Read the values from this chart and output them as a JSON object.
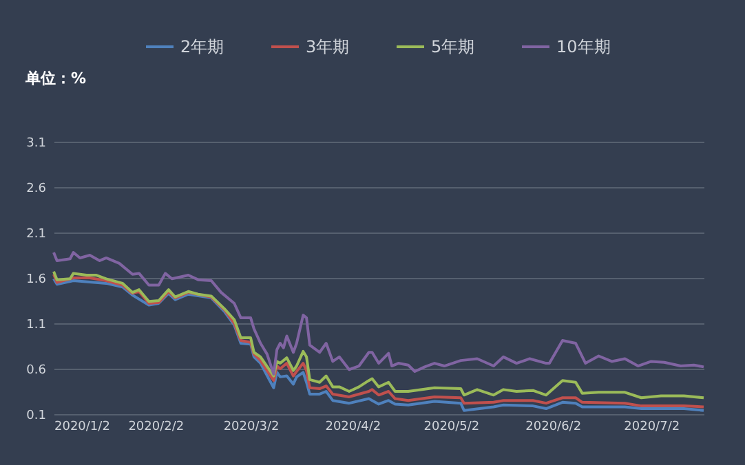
{
  "chart_data": {
    "type": "line",
    "ylabel": "单位：%",
    "legend": "top",
    "grid": "y",
    "line_style": "solid",
    "marker": "none",
    "xlim": [
      "2020-01-02",
      "2020-07-18"
    ],
    "xticks": [
      {
        "value": "2020-01-02",
        "label": "2020/1/2"
      },
      {
        "value": "2020-02-02",
        "label": "2020/2/2"
      },
      {
        "value": "2020-03-02",
        "label": "2020/3/2"
      },
      {
        "value": "2020-04-02",
        "label": "2020/4/2"
      },
      {
        "value": "2020-05-02",
        "label": "2020/5/2"
      },
      {
        "value": "2020-06-02",
        "label": "2020/6/2"
      },
      {
        "value": "2020-07-02",
        "label": "2020/7/2"
      }
    ],
    "ylim": [
      0.1,
      3.1
    ],
    "yticks": [
      0.1,
      0.6,
      1.1,
      1.6,
      2.1,
      2.6,
      3.1
    ],
    "series": [
      {
        "name": "2年期",
        "color": "#4f81bd",
        "x": [
          "2020-01-02",
          "2020-01-03",
          "2020-01-08",
          "2020-01-18",
          "2020-01-23",
          "2020-01-26",
          "2020-01-31",
          "2020-02-03",
          "2020-02-06",
          "2020-02-08",
          "2020-02-12",
          "2020-02-19",
          "2020-02-23",
          "2020-02-26",
          "2020-02-28",
          "2020-03-02",
          "2020-03-03",
          "2020-03-05",
          "2020-03-09",
          "2020-03-10",
          "2020-03-11",
          "2020-03-13",
          "2020-03-15",
          "2020-03-16",
          "2020-03-18",
          "2020-03-19",
          "2020-03-20",
          "2020-03-23",
          "2020-03-25",
          "2020-03-27",
          "2020-04-01",
          "2020-04-07",
          "2020-04-08",
          "2020-04-10",
          "2020-04-13",
          "2020-04-15",
          "2020-04-19",
          "2020-04-27",
          "2020-05-05",
          "2020-05-06",
          "2020-05-15",
          "2020-05-18",
          "2020-05-27",
          "2020-05-31",
          "2020-06-05",
          "2020-06-09",
          "2020-06-11",
          "2020-06-24",
          "2020-06-29",
          "2020-07-12",
          "2020-07-18"
        ],
        "values": [
          1.59,
          1.53,
          1.57,
          1.54,
          1.5,
          1.41,
          1.3,
          1.32,
          1.43,
          1.36,
          1.42,
          1.38,
          1.23,
          1.08,
          0.88,
          0.87,
          0.73,
          0.66,
          0.39,
          0.56,
          0.51,
          0.52,
          0.43,
          0.51,
          0.56,
          0.45,
          0.32,
          0.32,
          0.35,
          0.25,
          0.22,
          0.27,
          0.25,
          0.21,
          0.25,
          0.21,
          0.2,
          0.24,
          0.22,
          0.14,
          0.18,
          0.2,
          0.19,
          0.16,
          0.23,
          0.22,
          0.18,
          0.18,
          0.16,
          0.16,
          0.14
        ]
      },
      {
        "name": "3年期",
        "color": "#c0504d",
        "x": [
          "2020-01-02",
          "2020-01-03",
          "2020-01-08",
          "2020-01-13",
          "2020-01-18",
          "2020-01-23",
          "2020-01-26",
          "2020-01-28",
          "2020-01-31",
          "2020-02-03",
          "2020-02-06",
          "2020-02-08",
          "2020-02-12",
          "2020-02-19",
          "2020-02-23",
          "2020-02-26",
          "2020-02-28",
          "2020-03-02",
          "2020-03-03",
          "2020-03-05",
          "2020-03-09",
          "2020-03-10",
          "2020-03-11",
          "2020-03-13",
          "2020-03-15",
          "2020-03-16",
          "2020-03-18",
          "2020-03-19",
          "2020-03-20",
          "2020-03-23",
          "2020-03-25",
          "2020-03-27",
          "2020-04-01",
          "2020-04-07",
          "2020-04-08",
          "2020-04-10",
          "2020-04-13",
          "2020-04-15",
          "2020-04-19",
          "2020-04-27",
          "2020-05-05",
          "2020-05-06",
          "2020-05-15",
          "2020-05-18",
          "2020-05-27",
          "2020-05-31",
          "2020-06-05",
          "2020-06-09",
          "2020-06-11",
          "2020-06-24",
          "2020-06-29",
          "2020-07-12",
          "2020-07-18"
        ],
        "values": [
          1.64,
          1.55,
          1.6,
          1.6,
          1.57,
          1.52,
          1.43,
          1.45,
          1.32,
          1.33,
          1.45,
          1.38,
          1.44,
          1.39,
          1.25,
          1.1,
          0.91,
          0.89,
          0.76,
          0.69,
          0.47,
          0.63,
          0.6,
          0.66,
          0.52,
          0.57,
          0.66,
          0.58,
          0.39,
          0.38,
          0.41,
          0.32,
          0.29,
          0.35,
          0.37,
          0.31,
          0.35,
          0.27,
          0.25,
          0.29,
          0.28,
          0.22,
          0.23,
          0.25,
          0.25,
          0.22,
          0.28,
          0.28,
          0.23,
          0.22,
          0.19,
          0.19,
          0.18
        ]
      },
      {
        "name": "5年期",
        "color": "#9bbb59",
        "x": [
          "2020-01-02",
          "2020-01-03",
          "2020-01-07",
          "2020-01-08",
          "2020-01-12",
          "2020-01-15",
          "2020-01-18",
          "2020-01-23",
          "2020-01-26",
          "2020-01-28",
          "2020-01-31",
          "2020-02-03",
          "2020-02-06",
          "2020-02-08",
          "2020-02-12",
          "2020-02-15",
          "2020-02-19",
          "2020-02-23",
          "2020-02-26",
          "2020-02-28",
          "2020-03-02",
          "2020-03-03",
          "2020-03-05",
          "2020-03-09",
          "2020-03-10",
          "2020-03-11",
          "2020-03-13",
          "2020-03-15",
          "2020-03-16",
          "2020-03-18",
          "2020-03-19",
          "2020-03-20",
          "2020-03-23",
          "2020-03-25",
          "2020-03-27",
          "2020-03-29",
          "2020-04-01",
          "2020-04-04",
          "2020-04-07",
          "2020-04-08",
          "2020-04-10",
          "2020-04-13",
          "2020-04-15",
          "2020-04-19",
          "2020-04-27",
          "2020-05-05",
          "2020-05-06",
          "2020-05-10",
          "2020-05-15",
          "2020-05-18",
          "2020-05-22",
          "2020-05-27",
          "2020-05-31",
          "2020-06-05",
          "2020-06-09",
          "2020-06-11",
          "2020-06-16",
          "2020-06-24",
          "2020-06-29",
          "2020-07-05",
          "2020-07-12",
          "2020-07-18"
        ],
        "values": [
          1.67,
          1.58,
          1.59,
          1.65,
          1.63,
          1.63,
          1.59,
          1.54,
          1.44,
          1.47,
          1.34,
          1.35,
          1.47,
          1.39,
          1.45,
          1.42,
          1.4,
          1.26,
          1.14,
          0.94,
          0.94,
          0.78,
          0.73,
          0.52,
          0.68,
          0.66,
          0.72,
          0.58,
          0.63,
          0.79,
          0.73,
          0.48,
          0.45,
          0.52,
          0.4,
          0.4,
          0.35,
          0.4,
          0.47,
          0.49,
          0.4,
          0.45,
          0.35,
          0.35,
          0.39,
          0.38,
          0.31,
          0.37,
          0.31,
          0.37,
          0.35,
          0.36,
          0.31,
          0.47,
          0.45,
          0.33,
          0.34,
          0.34,
          0.28,
          0.3,
          0.3,
          0.28
        ]
      },
      {
        "name": "10年期",
        "color": "#8064a2",
        "x": [
          "2020-01-02",
          "2020-01-03",
          "2020-01-07",
          "2020-01-08",
          "2020-01-10",
          "2020-01-13",
          "2020-01-16",
          "2020-01-18",
          "2020-01-22",
          "2020-01-26",
          "2020-01-28",
          "2020-01-31",
          "2020-02-03",
          "2020-02-05",
          "2020-02-07",
          "2020-02-12",
          "2020-02-15",
          "2020-02-19",
          "2020-02-22",
          "2020-02-26",
          "2020-02-28",
          "2020-03-02",
          "2020-03-03",
          "2020-03-05",
          "2020-03-07",
          "2020-03-09",
          "2020-03-10",
          "2020-03-11",
          "2020-03-12",
          "2020-03-13",
          "2020-03-15",
          "2020-03-16",
          "2020-03-18",
          "2020-03-19",
          "2020-03-20",
          "2020-03-23",
          "2020-03-25",
          "2020-03-27",
          "2020-03-29",
          "2020-04-01",
          "2020-04-04",
          "2020-04-07",
          "2020-04-08",
          "2020-04-10",
          "2020-04-13",
          "2020-04-14",
          "2020-04-16",
          "2020-04-19",
          "2020-04-21",
          "2020-04-24",
          "2020-04-27",
          "2020-04-30",
          "2020-05-05",
          "2020-05-10",
          "2020-05-15",
          "2020-05-18",
          "2020-05-22",
          "2020-05-26",
          "2020-05-31",
          "2020-06-01",
          "2020-06-05",
          "2020-06-09",
          "2020-06-12",
          "2020-06-16",
          "2020-06-20",
          "2020-06-24",
          "2020-06-28",
          "2020-07-02",
          "2020-07-06",
          "2020-07-11",
          "2020-07-15",
          "2020-07-18"
        ],
        "values": [
          1.88,
          1.79,
          1.81,
          1.88,
          1.82,
          1.85,
          1.79,
          1.82,
          1.76,
          1.64,
          1.65,
          1.52,
          1.52,
          1.65,
          1.59,
          1.63,
          1.58,
          1.57,
          1.44,
          1.32,
          1.16,
          1.16,
          1.04,
          0.88,
          0.76,
          0.54,
          0.81,
          0.88,
          0.83,
          0.96,
          0.78,
          0.88,
          1.19,
          1.16,
          0.86,
          0.78,
          0.88,
          0.68,
          0.73,
          0.59,
          0.63,
          0.78,
          0.78,
          0.66,
          0.77,
          0.63,
          0.66,
          0.64,
          0.57,
          0.62,
          0.66,
          0.63,
          0.69,
          0.71,
          0.63,
          0.73,
          0.66,
          0.71,
          0.66,
          0.66,
          0.91,
          0.88,
          0.66,
          0.74,
          0.68,
          0.71,
          0.63,
          0.68,
          0.67,
          0.63,
          0.64,
          0.62
        ]
      }
    ]
  }
}
